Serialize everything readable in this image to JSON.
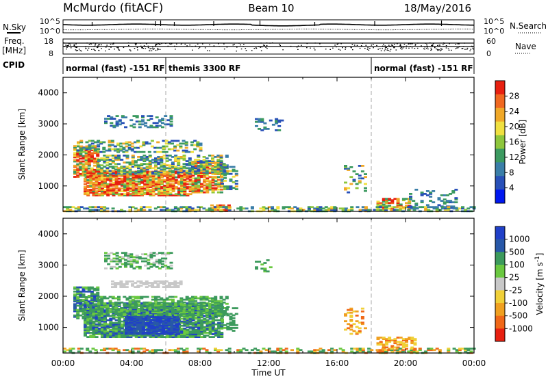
{
  "header": {
    "station": "McMurdo (fitACF)",
    "beam": "Beam 10",
    "date": "18/May/2016"
  },
  "strips": {
    "noise_left_label": "N.Sky",
    "noise_right_label": "N.Search",
    "noise_scale_top": "10^5",
    "noise_scale_bottom": "10^0",
    "freq_label_1": "Freq.",
    "freq_label_2": "[MHz]",
    "freq_scale_top": "18",
    "freq_scale_bottom": "8",
    "nave_label": "Nave",
    "nave_scale_top": "60",
    "nave_scale_bottom": "0",
    "cpid_label": "CPID",
    "cpid_segments": [
      {
        "label": "normal (fast) -151 RF",
        "start": 0,
        "end": 6
      },
      {
        "label": "themis 3300 RF",
        "start": 6,
        "end": 18
      },
      {
        "label": "normal (fast) -151 RF",
        "start": 18,
        "end": 24
      }
    ]
  },
  "chart_data": [
    {
      "type": "heatmap",
      "parameter": "Power",
      "ylabel": "Slant Range [km]",
      "xlabel": "Time UT",
      "x_ticks": [
        "00:00",
        "04:00",
        "08:00",
        "12:00",
        "16:00",
        "20:00",
        "00:00"
      ],
      "x_range_hours": [
        0,
        24
      ],
      "y_ticks": [
        "1000",
        "2000",
        "3000",
        "4000"
      ],
      "y_range_km": [
        180,
        4500
      ],
      "colorbar": {
        "label": "Power [dB]",
        "ticks": [
          "4",
          "8",
          "12",
          "16",
          "20",
          "24",
          "28"
        ],
        "colors": [
          "#0018f0",
          "#2850b8",
          "#3a7ea8",
          "#3c9a60",
          "#8ec63c",
          "#f0e040",
          "#f0a828",
          "#f06820",
          "#e82010"
        ],
        "range": [
          0,
          32
        ]
      }
    },
    {
      "type": "heatmap",
      "parameter": "Velocity",
      "ylabel": "Slant Range [km]",
      "xlabel": "Time UT",
      "x_ticks": [
        "00:00",
        "04:00",
        "08:00",
        "12:00",
        "16:00",
        "20:00",
        "00:00"
      ],
      "x_range_hours": [
        0,
        24
      ],
      "y_ticks": [
        "1000",
        "2000",
        "3000",
        "4000"
      ],
      "y_range_km": [
        180,
        4500
      ],
      "colorbar": {
        "label_main": "Velocity [m s",
        "label_sup": "-1",
        "label_end": "]",
        "ticks": [
          "1000",
          "500",
          "100",
          "25",
          "-25",
          "-100",
          "-500",
          "-1000"
        ],
        "colors": [
          "#2040c8",
          "#2858a8",
          "#3c9a5c",
          "#6ac840",
          "#c8c8c8",
          "#f0d038",
          "#f0a020",
          "#f06818",
          "#e82010"
        ]
      }
    }
  ],
  "footer": {
    "time_label": "Time UT"
  }
}
